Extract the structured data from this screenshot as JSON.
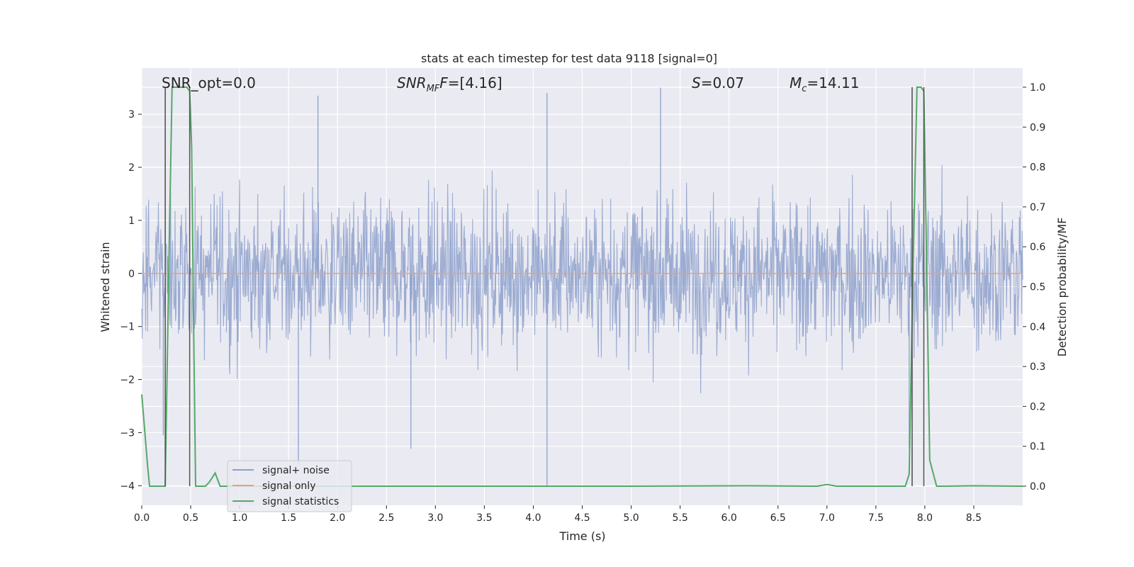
{
  "chart_data": {
    "type": "line",
    "title": "stats at each timestep for test data 9118 [signal=0]",
    "xlabel": "Time (s)",
    "ylabel_left": "Whitened strain",
    "ylabel_right": "Detection probability/MF",
    "xlim": [
      0.0,
      9.0
    ],
    "ylim_left": [
      -4.37,
      3.87
    ],
    "ylim_right": [
      -0.048,
      1.048
    ],
    "x_ticks": [
      0.0,
      0.5,
      1.0,
      1.5,
      2.0,
      2.5,
      3.0,
      3.5,
      4.0,
      4.5,
      5.0,
      5.5,
      6.0,
      6.5,
      7.0,
      7.5,
      8.0,
      8.5
    ],
    "x_tick_labels": [
      "0.0",
      "0.5",
      "1.0",
      "1.5",
      "2.0",
      "2.5",
      "3.0",
      "3.5",
      "4.0",
      "4.5",
      "5.0",
      "5.5",
      "6.0",
      "6.5",
      "7.0",
      "7.5",
      "8.0",
      "8.5"
    ],
    "y_left_ticks": [
      -4,
      -3,
      -2,
      -1,
      0,
      1,
      2,
      3
    ],
    "y_left_tick_labels": [
      "−4",
      "−3",
      "−2",
      "−1",
      "0",
      "1",
      "2",
      "3"
    ],
    "y_right_ticks": [
      0.0,
      0.1,
      0.2,
      0.3,
      0.4,
      0.5,
      0.6,
      0.7,
      0.8,
      0.9,
      1.0
    ],
    "y_right_tick_labels": [
      "0.0",
      "0.1",
      "0.2",
      "0.3",
      "0.4",
      "0.5",
      "0.6",
      "0.7",
      "0.8",
      "0.9",
      "1.0"
    ],
    "grid": true,
    "legend_position": "lower-left",
    "annotations": {
      "snr_opt": "SNR_opt=0.0",
      "snr_mf_label": "SNR",
      "snr_mf_sub": "MF",
      "snr_mf_value": "=[4.16]",
      "s_label": "S",
      "s_value": "=0.07",
      "mc_label": "M",
      "mc_sub": "c",
      "mc_value": "=14.11"
    },
    "series": [
      {
        "name": "signal+ noise",
        "axis": "left",
        "color": "#8da0cb",
        "description": "whitened strain noise, dense trace approx. within -2.5 to 2.5 with spikes",
        "x_range": [
          0.0,
          9.0
        ],
        "typical_envelope": [
          -1.8,
          1.8
        ],
        "peaks": [
          {
            "x": 1.6,
            "y": -3.6
          },
          {
            "x": 1.8,
            "y": 3.35
          },
          {
            "x": 4.14,
            "y": 3.4
          },
          {
            "x": 4.14,
            "y": -4.0
          },
          {
            "x": 5.3,
            "y": 3.5
          },
          {
            "x": 0.22,
            "y": -3.05
          },
          {
            "x": 7.84,
            "y": -3.3
          },
          {
            "x": 2.75,
            "y": -3.3
          }
        ]
      },
      {
        "name": "signal only",
        "axis": "left",
        "color": "#e5a47a",
        "x": [
          0.0,
          9.0
        ],
        "y": [
          0.0,
          0.0
        ]
      },
      {
        "name": "signal statistics",
        "axis": "right",
        "color": "#55a868",
        "x": [
          0.0,
          0.06,
          0.08,
          0.12,
          0.18,
          0.24,
          0.28,
          0.31,
          0.36,
          0.42,
          0.46,
          0.49,
          0.51,
          0.53,
          0.55,
          0.6,
          0.65,
          0.69,
          0.75,
          0.8,
          1.0,
          3.0,
          5.0,
          6.2,
          6.9,
          7.0,
          7.1,
          7.5,
          7.8,
          7.84,
          7.88,
          7.92,
          7.96,
          7.99,
          8.05,
          8.12,
          8.2,
          8.5,
          9.0
        ],
        "y": [
          0.23,
          0.05,
          0.0,
          0.0,
          0.0,
          0.0,
          0.6,
          1.0,
          1.0,
          1.0,
          1.0,
          0.99,
          0.85,
          0.4,
          0.0,
          0.0,
          0.0,
          0.01,
          0.033,
          0.0,
          0.0,
          0.0,
          0.0,
          0.001,
          0.0,
          0.004,
          0.0,
          0.0,
          0.0,
          0.03,
          0.55,
          1.0,
          1.0,
          0.99,
          0.065,
          0.0,
          0.0,
          0.001,
          0.0
        ]
      }
    ],
    "vertical_markers": [
      0.24,
      0.49,
      7.87,
      7.99
    ],
    "vertical_marker_color": "#555555"
  }
}
